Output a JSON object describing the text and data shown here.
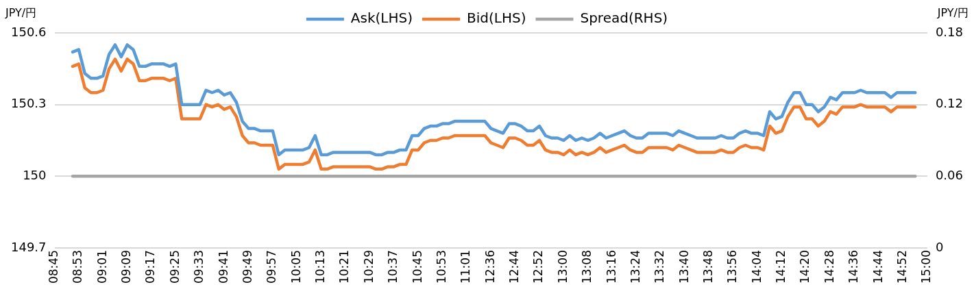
{
  "chart_data": {
    "type": "line",
    "ylabel": "JPY/円",
    "y2label": "JPY/円",
    "categories": [
      "08:45",
      null,
      null,
      null,
      "08:53",
      null,
      null,
      null,
      "09:01",
      null,
      null,
      null,
      "09:09",
      null,
      null,
      null,
      "09:17",
      null,
      null,
      null,
      "09:25",
      null,
      null,
      null,
      "09:33",
      null,
      null,
      null,
      "09:41",
      null,
      null,
      null,
      "09:49",
      null,
      null,
      null,
      "09:57",
      null,
      null,
      null,
      "10:05",
      null,
      null,
      null,
      "10:13",
      null,
      null,
      null,
      "10:21",
      null,
      null,
      null,
      "10:29",
      null,
      null,
      null,
      "10:37",
      null,
      null,
      null,
      "10:45",
      null,
      null,
      null,
      "10:53",
      null,
      null,
      null,
      "11:01",
      null,
      null,
      null,
      "12:36",
      null,
      null,
      null,
      "12:44",
      null,
      null,
      null,
      "12:52",
      null,
      null,
      null,
      "13:00",
      null,
      null,
      null,
      "13:08",
      null,
      null,
      null,
      "13:16",
      null,
      null,
      null,
      "13:24",
      null,
      null,
      null,
      "13:32",
      null,
      null,
      null,
      "13:40",
      null,
      null,
      null,
      "13:48",
      null,
      null,
      null,
      "13:56",
      null,
      null,
      null,
      "14:04",
      null,
      null,
      null,
      "14:12",
      null,
      null,
      null,
      "14:20",
      null,
      null,
      null,
      "14:28",
      null,
      null,
      null,
      "14:36",
      null,
      null,
      null,
      "14:44",
      null,
      null,
      null,
      "14:52",
      null,
      null,
      null,
      "15:00"
    ],
    "series": [
      {
        "name": "Ask(LHS)",
        "color": "#5b9bd5",
        "values": [
          null,
          null,
          null,
          150.52,
          150.53,
          150.43,
          150.41,
          150.41,
          150.42,
          150.51,
          150.55,
          150.5,
          150.55,
          150.53,
          150.46,
          150.46,
          150.47,
          150.47,
          150.47,
          150.46,
          150.47,
          150.3,
          150.3,
          150.3,
          150.3,
          150.36,
          150.35,
          150.36,
          150.34,
          150.35,
          150.31,
          150.23,
          150.2,
          150.2,
          150.19,
          150.19,
          150.19,
          150.09,
          150.11,
          150.11,
          150.11,
          150.11,
          150.12,
          150.17,
          150.09,
          150.09,
          150.1,
          150.1,
          150.1,
          150.1,
          150.1,
          150.1,
          150.1,
          150.09,
          150.09,
          150.1,
          150.1,
          150.11,
          150.11,
          150.17,
          150.17,
          150.2,
          150.21,
          150.21,
          150.22,
          150.22,
          150.23,
          150.23,
          150.23,
          150.23,
          150.23,
          150.23,
          150.2,
          150.19,
          150.18,
          150.22,
          150.22,
          150.21,
          150.19,
          150.19,
          150.21,
          150.17,
          150.16,
          150.16,
          150.15,
          150.17,
          150.15,
          150.16,
          150.15,
          150.16,
          150.18,
          150.16,
          150.17,
          150.18,
          150.19,
          150.17,
          150.16,
          150.16,
          150.18,
          150.18,
          150.18,
          150.18,
          150.17,
          150.19,
          150.18,
          150.17,
          150.16,
          150.16,
          150.16,
          150.16,
          150.17,
          150.16,
          150.16,
          150.18,
          150.19,
          150.18,
          150.18,
          150.17,
          150.27,
          150.24,
          150.25,
          150.31,
          150.35,
          150.35,
          150.3,
          150.3,
          150.27,
          150.29,
          150.33,
          150.32,
          150.35,
          150.35,
          150.35,
          150.36,
          150.35,
          150.35,
          150.35,
          150.35,
          150.33,
          150.35,
          150.35,
          150.35,
          150.35,
          null,
          null
        ]
      },
      {
        "name": "Bid(LHS)",
        "color": "#ed7d31",
        "values": [
          null,
          null,
          null,
          150.46,
          150.47,
          150.37,
          150.35,
          150.35,
          150.36,
          150.45,
          150.49,
          150.44,
          150.49,
          150.47,
          150.4,
          150.4,
          150.41,
          150.41,
          150.41,
          150.4,
          150.41,
          150.24,
          150.24,
          150.24,
          150.24,
          150.3,
          150.29,
          150.3,
          150.28,
          150.29,
          150.25,
          150.17,
          150.14,
          150.14,
          150.13,
          150.13,
          150.13,
          150.03,
          150.05,
          150.05,
          150.05,
          150.05,
          150.06,
          150.11,
          150.03,
          150.03,
          150.04,
          150.04,
          150.04,
          150.04,
          150.04,
          150.04,
          150.04,
          150.03,
          150.03,
          150.04,
          150.04,
          150.05,
          150.05,
          150.11,
          150.11,
          150.14,
          150.15,
          150.15,
          150.16,
          150.16,
          150.17,
          150.17,
          150.17,
          150.17,
          150.17,
          150.17,
          150.14,
          150.13,
          150.12,
          150.16,
          150.16,
          150.15,
          150.13,
          150.13,
          150.15,
          150.11,
          150.1,
          150.1,
          150.09,
          150.11,
          150.09,
          150.1,
          150.09,
          150.1,
          150.12,
          150.1,
          150.11,
          150.12,
          150.13,
          150.11,
          150.1,
          150.1,
          150.12,
          150.12,
          150.12,
          150.12,
          150.11,
          150.13,
          150.12,
          150.11,
          150.1,
          150.1,
          150.1,
          150.1,
          150.11,
          150.1,
          150.1,
          150.12,
          150.13,
          150.12,
          150.12,
          150.11,
          150.21,
          150.18,
          150.19,
          150.25,
          150.29,
          150.29,
          150.24,
          150.24,
          150.21,
          150.23,
          150.27,
          150.26,
          150.29,
          150.29,
          150.29,
          150.3,
          150.29,
          150.29,
          150.29,
          150.29,
          150.27,
          150.29,
          150.29,
          150.29,
          150.29,
          null,
          null
        ]
      },
      {
        "name": "Spread(RHS)",
        "color": "#a5a5a5",
        "axis": "y2",
        "values": [
          null,
          null,
          null,
          0.06,
          0.06,
          0.06,
          0.06,
          0.06,
          0.06,
          0.06,
          0.06,
          0.06,
          0.06,
          0.06,
          0.06,
          0.06,
          0.06,
          0.06,
          0.06,
          0.06,
          0.06,
          0.06,
          0.06,
          0.06,
          0.06,
          0.06,
          0.06,
          0.06,
          0.06,
          0.06,
          0.06,
          0.06,
          0.06,
          0.06,
          0.06,
          0.06,
          0.06,
          0.06,
          0.06,
          0.06,
          0.06,
          0.06,
          0.06,
          0.06,
          0.06,
          0.06,
          0.06,
          0.06,
          0.06,
          0.06,
          0.06,
          0.06,
          0.06,
          0.06,
          0.06,
          0.06,
          0.06,
          0.06,
          0.06,
          0.06,
          0.06,
          0.06,
          0.06,
          0.06,
          0.06,
          0.06,
          0.06,
          0.06,
          0.06,
          0.06,
          0.06,
          0.06,
          0.06,
          0.06,
          0.06,
          0.06,
          0.06,
          0.06,
          0.06,
          0.06,
          0.06,
          0.06,
          0.06,
          0.06,
          0.06,
          0.06,
          0.06,
          0.06,
          0.06,
          0.06,
          0.06,
          0.06,
          0.06,
          0.06,
          0.06,
          0.06,
          0.06,
          0.06,
          0.06,
          0.06,
          0.06,
          0.06,
          0.06,
          0.06,
          0.06,
          0.06,
          0.06,
          0.06,
          0.06,
          0.06,
          0.06,
          0.06,
          0.06,
          0.06,
          0.06,
          0.06,
          0.06,
          0.06,
          0.06,
          0.06,
          0.06,
          0.06,
          0.06,
          0.06,
          0.06,
          0.06,
          0.06,
          0.06,
          0.06,
          0.06,
          0.06,
          0.06,
          0.06,
          0.06,
          0.06,
          0.06,
          0.06,
          0.06,
          0.06,
          0.06,
          0.06,
          0.06,
          0.06,
          null,
          null
        ]
      }
    ],
    "ylim": [
      149.7,
      150.6
    ],
    "yticks": [
      149.7,
      150,
      150.3,
      150.6
    ],
    "y2lim": [
      0,
      0.18
    ],
    "y2ticks": [
      0,
      0.06,
      0.12,
      0.18
    ],
    "grid": "y",
    "legend": "top",
    "marker": "none",
    "line_style": "solid"
  }
}
